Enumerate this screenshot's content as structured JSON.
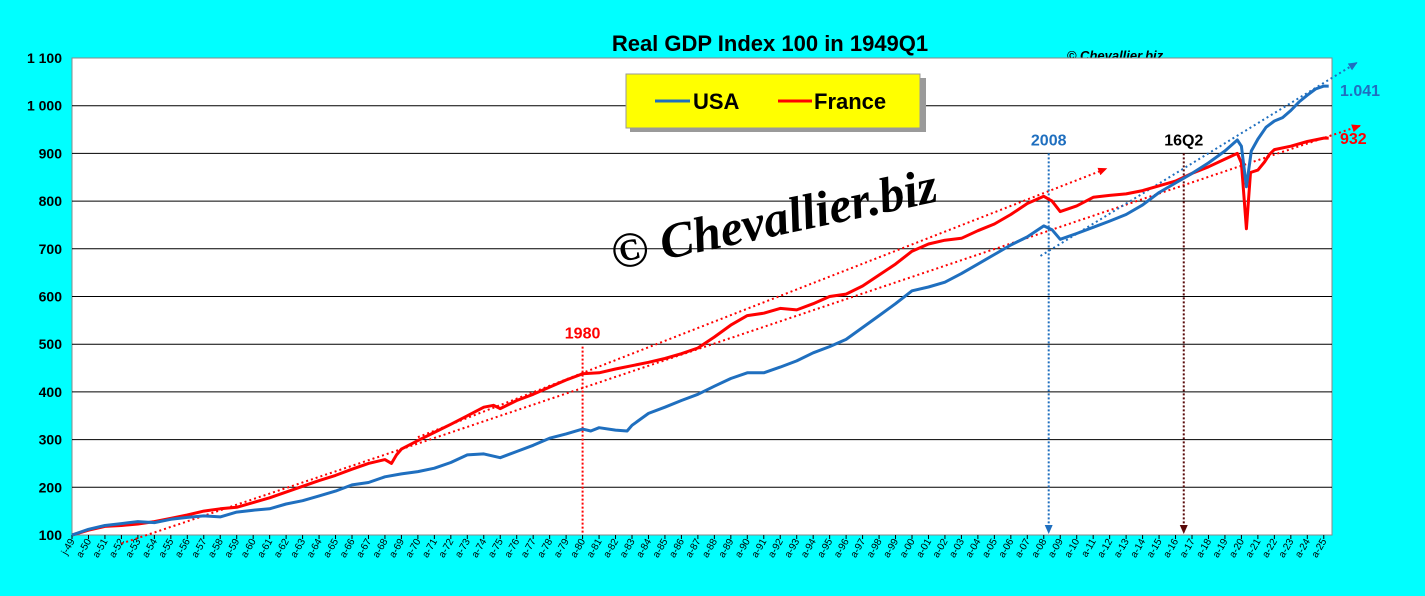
{
  "chart_data": {
    "type": "line",
    "title": "Real GDP Index 100 in 1949Q1",
    "copyright": "© Chevallier.biz",
    "watermark": "© Chevallier.biz",
    "ylim": [
      100,
      1100
    ],
    "yticks": [
      100,
      200,
      300,
      400,
      500,
      600,
      700,
      800,
      900,
      1000,
      1100
    ],
    "ytick_labels": [
      "100",
      "200",
      "300",
      "400",
      "500",
      "600",
      "700",
      "800",
      "900",
      "1 000",
      "1 100"
    ],
    "x_start_year": 1949,
    "x_end_year": 2025.5,
    "xtick_labels": [
      "j-49",
      "a-50",
      "a-51",
      "a-52",
      "a-53",
      "a-54",
      "a-55",
      "a-56",
      "a-57",
      "a-58",
      "a-59",
      "a-60",
      "a-61",
      "a-62",
      "a-63",
      "a-64",
      "a-65",
      "a-66",
      "a-67",
      "a-68",
      "a-69",
      "a-70",
      "a-71",
      "a-72",
      "a-73",
      "a-74",
      "a-75",
      "a-76",
      "a-77",
      "a-78",
      "a-79",
      "a-80",
      "a-81",
      "a-82",
      "a-83",
      "a-84",
      "a-85",
      "a-86",
      "a-87",
      "a-88",
      "a-89",
      "a-90",
      "a-91",
      "a-92",
      "a-93",
      "a-94",
      "a-95",
      "a-96",
      "a-97",
      "a-98",
      "a-99",
      "a-00",
      "a-01",
      "a-02",
      "a-03",
      "a-04",
      "a-05",
      "a-06",
      "a-07",
      "a-08",
      "a-09",
      "a-10",
      "a-11",
      "a-12",
      "a-13",
      "a-14",
      "a-15",
      "a-16",
      "a-17",
      "a-18",
      "a-19",
      "a-20",
      "a-21",
      "a-22",
      "a-23",
      "a-24",
      "a-25"
    ],
    "grid": true,
    "legend_position": "top-center",
    "series": [
      {
        "name": "USA",
        "color": "#1F6FBF",
        "points": [
          [
            1949,
            100
          ],
          [
            1950,
            112
          ],
          [
            1951,
            120
          ],
          [
            1952,
            124
          ],
          [
            1953,
            128
          ],
          [
            1954,
            126
          ],
          [
            1955,
            133
          ],
          [
            1956,
            137
          ],
          [
            1957,
            140
          ],
          [
            1958,
            138
          ],
          [
            1959,
            148
          ],
          [
            1960,
            152
          ],
          [
            1961,
            155
          ],
          [
            1962,
            165
          ],
          [
            1963,
            172
          ],
          [
            1964,
            182
          ],
          [
            1965,
            192
          ],
          [
            1966,
            205
          ],
          [
            1967,
            210
          ],
          [
            1968,
            222
          ],
          [
            1969,
            228
          ],
          [
            1970,
            233
          ],
          [
            1971,
            240
          ],
          [
            1972,
            252
          ],
          [
            1973,
            268
          ],
          [
            1974,
            270
          ],
          [
            1975,
            262
          ],
          [
            1976,
            275
          ],
          [
            1977,
            288
          ],
          [
            1978,
            303
          ],
          [
            1979,
            312
          ],
          [
            1980,
            322
          ],
          [
            1980.5,
            318
          ],
          [
            1981,
            325
          ],
          [
            1982,
            320
          ],
          [
            1982.7,
            318
          ],
          [
            1983,
            330
          ],
          [
            1984,
            355
          ],
          [
            1985,
            368
          ],
          [
            1986,
            382
          ],
          [
            1987,
            395
          ],
          [
            1988,
            412
          ],
          [
            1989,
            428
          ],
          [
            1990,
            440
          ],
          [
            1991,
            440
          ],
          [
            1992,
            452
          ],
          [
            1993,
            465
          ],
          [
            1994,
            482
          ],
          [
            1995,
            495
          ],
          [
            1996,
            510
          ],
          [
            1997,
            535
          ],
          [
            1998,
            560
          ],
          [
            1999,
            585
          ],
          [
            2000,
            612
          ],
          [
            2001,
            620
          ],
          [
            2002,
            630
          ],
          [
            2003,
            648
          ],
          [
            2004,
            668
          ],
          [
            2005,
            688
          ],
          [
            2006,
            708
          ],
          [
            2007,
            725
          ],
          [
            2008,
            748
          ],
          [
            2008.5,
            740
          ],
          [
            2009,
            720
          ],
          [
            2010,
            732
          ],
          [
            2011,
            745
          ],
          [
            2012,
            758
          ],
          [
            2013,
            772
          ],
          [
            2014,
            792
          ],
          [
            2015,
            818
          ],
          [
            2016,
            838
          ],
          [
            2017,
            858
          ],
          [
            2018,
            880
          ],
          [
            2019,
            905
          ],
          [
            2019.75,
            928
          ],
          [
            2020.0,
            915
          ],
          [
            2020.3,
            830
          ],
          [
            2020.6,
            905
          ],
          [
            2021,
            930
          ],
          [
            2021.5,
            955
          ],
          [
            2022,
            968
          ],
          [
            2022.5,
            975
          ],
          [
            2023,
            990
          ],
          [
            2023.5,
            1008
          ],
          [
            2024,
            1022
          ],
          [
            2024.5,
            1035
          ],
          [
            2025,
            1041
          ],
          [
            2025.3,
            1041
          ]
        ]
      },
      {
        "name": "France",
        "color": "#FF0000",
        "points": [
          [
            1949,
            100
          ],
          [
            1950,
            110
          ],
          [
            1951,
            118
          ],
          [
            1952,
            120
          ],
          [
            1953,
            123
          ],
          [
            1954,
            128
          ],
          [
            1955,
            135
          ],
          [
            1956,
            142
          ],
          [
            1957,
            150
          ],
          [
            1958,
            155
          ],
          [
            1959,
            158
          ],
          [
            1960,
            168
          ],
          [
            1961,
            178
          ],
          [
            1962,
            190
          ],
          [
            1963,
            202
          ],
          [
            1964,
            214
          ],
          [
            1965,
            225
          ],
          [
            1966,
            238
          ],
          [
            1967,
            250
          ],
          [
            1968,
            258
          ],
          [
            1968.4,
            250
          ],
          [
            1968.7,
            268
          ],
          [
            1969,
            280
          ],
          [
            1970,
            298
          ],
          [
            1971,
            315
          ],
          [
            1972,
            332
          ],
          [
            1973,
            350
          ],
          [
            1974,
            368
          ],
          [
            1974.6,
            372
          ],
          [
            1975,
            365
          ],
          [
            1976,
            382
          ],
          [
            1977,
            395
          ],
          [
            1978,
            410
          ],
          [
            1979,
            425
          ],
          [
            1980,
            438
          ],
          [
            1981,
            440
          ],
          [
            1982,
            448
          ],
          [
            1983,
            455
          ],
          [
            1984,
            462
          ],
          [
            1985,
            470
          ],
          [
            1986,
            480
          ],
          [
            1987,
            492
          ],
          [
            1988,
            515
          ],
          [
            1989,
            540
          ],
          [
            1990,
            560
          ],
          [
            1991,
            565
          ],
          [
            1992,
            575
          ],
          [
            1993,
            572
          ],
          [
            1994,
            585
          ],
          [
            1995,
            600
          ],
          [
            1996,
            605
          ],
          [
            1997,
            622
          ],
          [
            1998,
            645
          ],
          [
            1999,
            668
          ],
          [
            2000,
            695
          ],
          [
            2001,
            710
          ],
          [
            2002,
            718
          ],
          [
            2003,
            722
          ],
          [
            2004,
            738
          ],
          [
            2005,
            752
          ],
          [
            2006,
            772
          ],
          [
            2007,
            795
          ],
          [
            2008,
            810
          ],
          [
            2008.5,
            800
          ],
          [
            2009,
            778
          ],
          [
            2010,
            790
          ],
          [
            2011,
            808
          ],
          [
            2012,
            812
          ],
          [
            2013,
            815
          ],
          [
            2014,
            822
          ],
          [
            2015,
            832
          ],
          [
            2016,
            842
          ],
          [
            2017,
            858
          ],
          [
            2018,
            872
          ],
          [
            2019,
            888
          ],
          [
            2019.75,
            900
          ],
          [
            2020.0,
            880
          ],
          [
            2020.3,
            742
          ],
          [
            2020.55,
            860
          ],
          [
            2021,
            865
          ],
          [
            2021.4,
            882
          ],
          [
            2021.7,
            898
          ],
          [
            2022,
            908
          ],
          [
            2023,
            915
          ],
          [
            2024,
            925
          ],
          [
            2025,
            932
          ],
          [
            2025.3,
            932
          ]
        ]
      }
    ],
    "trendlines": [
      {
        "color": "#FF0000",
        "from": [
          1952,
          82
        ],
        "to": [
          2027.2,
          958
        ],
        "arrow": true
      },
      {
        "color": "#FF0000",
        "from": [
          1970,
          305
        ],
        "to": [
          2011.8,
          868
        ],
        "arrow": true
      },
      {
        "color": "#1F6FBF",
        "from": [
          2007.8,
          685
        ],
        "to": [
          2027.0,
          1090
        ],
        "arrow": true
      }
    ],
    "annotations": [
      {
        "text": "1980",
        "color": "#FF0000",
        "x": 1980,
        "line_color": "#FF0000",
        "line_from": 100,
        "line_to": 495
      },
      {
        "text": "2008",
        "color": "#1F6FBF",
        "x": 2008.3,
        "line_color": "#1F6FBF",
        "line_from": 100,
        "line_to": 900
      },
      {
        "text": "16Q2",
        "color": "#000000",
        "x": 2016.5,
        "line_color": "#5A0A0A",
        "line_from": 100,
        "line_to": 900
      }
    ],
    "end_labels": [
      {
        "text": "1.041",
        "color": "#1F6FBF",
        "value": 1041
      },
      {
        "text": "932",
        "color": "#FF0000",
        "value": 932
      }
    ]
  }
}
